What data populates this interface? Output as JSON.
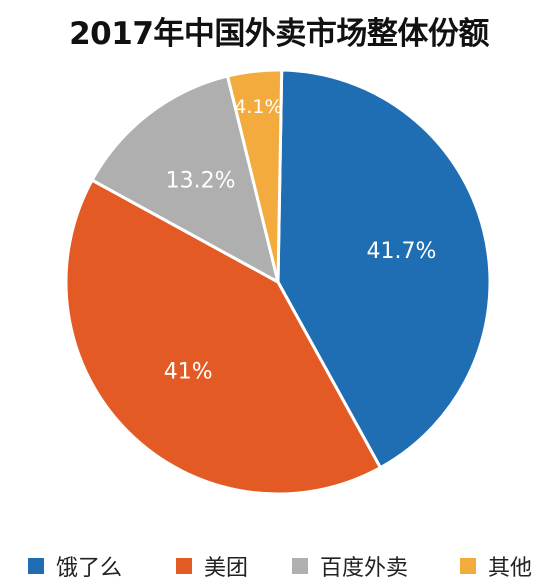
{
  "chart_data": {
    "type": "pie",
    "title": "2017年中国外卖市场整体份额",
    "slices": [
      {
        "label": "饿了么",
        "value": 41.7,
        "display": "41.7%",
        "color": "#1f6db3"
      },
      {
        "label": "美团",
        "value": 41.0,
        "display": "41%",
        "color": "#e35a25"
      },
      {
        "label": "百度外卖",
        "value": 13.2,
        "display": "13.2%",
        "color": "#afafaf"
      },
      {
        "label": "其他",
        "value": 4.1,
        "display": "4.1%",
        "color": "#f2ab3c"
      }
    ],
    "legend_position": "bottom"
  }
}
